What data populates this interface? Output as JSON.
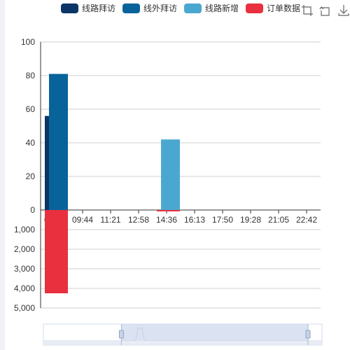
{
  "chart_data": [
    {
      "type": "bar",
      "categories": [
        "08:06",
        "09:44",
        "11:21",
        "12:58",
        "14:36",
        "16:13",
        "17:50",
        "19:28",
        "21:05",
        "22:42"
      ],
      "ylim": [
        0,
        100
      ],
      "yticks": [
        "0",
        "20",
        "40",
        "60",
        "80",
        "100"
      ],
      "series": [
        {
          "name": "线路拜访",
          "color": "#0b3566",
          "points": [
            {
              "x": "08:06",
              "y": 56
            }
          ]
        },
        {
          "name": "线外拜访",
          "color": "#08639b",
          "points": [
            {
              "x": "08:06",
              "y": 81
            }
          ]
        },
        {
          "name": "线路新增",
          "color": "#4aa8d0",
          "points": [
            {
              "x": "14:36",
              "y": 42
            }
          ]
        }
      ]
    },
    {
      "type": "bar",
      "inverted": true,
      "ylim": [
        0,
        5000
      ],
      "yticks": [
        "",
        "1,000",
        "2,000",
        "3,000",
        "4,000",
        "5,000"
      ],
      "series": [
        {
          "name": "订单数据",
          "color": "#e8303f",
          "points": [
            {
              "x": "08:06",
              "y": 4250
            },
            {
              "x": "14:36",
              "y": 60
            }
          ]
        }
      ]
    }
  ],
  "legend": [
    {
      "label": "线路拜访",
      "color": "#0b3566"
    },
    {
      "label": "线外拜访",
      "color": "#08639b"
    },
    {
      "label": "线路新增",
      "color": "#4aa8d0"
    },
    {
      "label": "订单数据",
      "color": "#e8303f"
    }
  ],
  "toolbox": [
    {
      "icon": "zoom-area-icon"
    },
    {
      "icon": "zoom-reset-icon"
    },
    {
      "icon": "download-icon"
    }
  ],
  "datazoom": {
    "start": 0.28,
    "end": 1.0
  }
}
